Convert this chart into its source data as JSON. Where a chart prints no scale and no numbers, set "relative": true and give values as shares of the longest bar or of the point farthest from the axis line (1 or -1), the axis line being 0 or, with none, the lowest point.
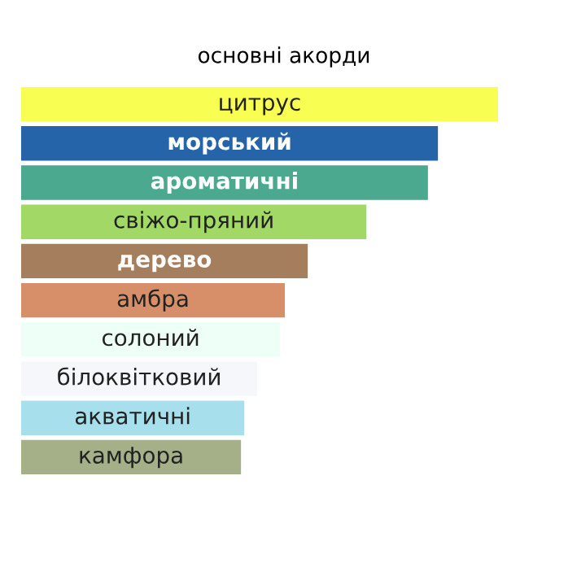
{
  "chart_data": {
    "type": "bar",
    "orientation": "horizontal",
    "relative": true,
    "title": "основні акорди",
    "categories": [
      "цитрус",
      "морський",
      "ароматичні",
      "свіжо-пряний",
      "дерево",
      "амбра",
      "солоний",
      "білоквітковий",
      "акватичні",
      "камфора"
    ],
    "values": [
      1,
      0.874,
      0.853,
      0.724,
      0.601,
      0.553,
      0.543,
      0.495,
      0.468,
      0.461
    ],
    "colors": [
      "#f9ff52",
      "#2564a8",
      "#4aa98e",
      "#a2d866",
      "#a47e5d",
      "#d68f69",
      "#eefff8",
      "#f5f7fb",
      "#a8dfec",
      "#a5b089"
    ]
  }
}
